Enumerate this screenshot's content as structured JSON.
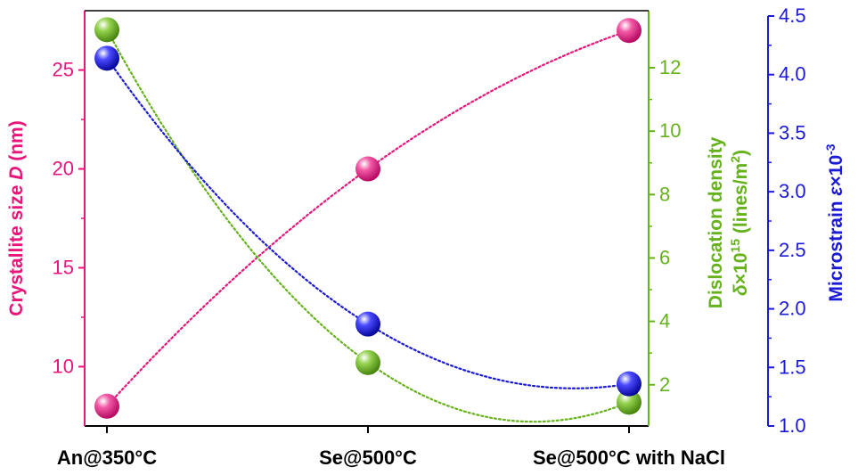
{
  "chart_data": {
    "type": "scatter",
    "categories": [
      "An@350°C",
      "Se@500°C",
      "Se@500°C with NaCl"
    ],
    "series": [
      {
        "id": "crystallite",
        "axis": "left",
        "color": "#E8157A",
        "values": [
          8.0,
          20.0,
          27.0
        ]
      },
      {
        "id": "dislocation",
        "axis": "right1",
        "color": "#66B21C",
        "values": [
          13.2,
          2.7,
          1.45
        ]
      },
      {
        "id": "microstrain",
        "axis": "right2",
        "color": "#1B1BD6",
        "values": [
          4.14,
          1.87,
          1.36
        ]
      }
    ],
    "axes": {
      "left": {
        "ylim": [
          7,
          28
        ],
        "ticks": [
          "10",
          "15",
          "20",
          "25"
        ],
        "tick_values": [
          10,
          15,
          20,
          25
        ],
        "label": {
          "pre": "Crystallite size ",
          "italic": "D",
          "post": " (nm)"
        },
        "color": "#E8157A"
      },
      "right1": {
        "ylim": [
          0.7,
          13.8
        ],
        "ticks": [
          "2",
          "4",
          "6",
          "8",
          "10",
          "12"
        ],
        "tick_values": [
          2,
          4,
          6,
          8,
          10,
          12
        ],
        "label_line1": "Dislocation density",
        "label_line2": {
          "delta": "δ",
          "times": "×10",
          "exp": "15",
          "mid": " (lines/m",
          "sup": "2",
          "end": ")"
        },
        "color": "#66B21C"
      },
      "right2": {
        "ylim": [
          1.0,
          4.5
        ],
        "ticks": [
          "1.0",
          "1.5",
          "2.0",
          "2.5",
          "3.0",
          "3.5",
          "4.0",
          "4.5"
        ],
        "tick_values": [
          1.0,
          1.5,
          2.0,
          2.5,
          3.0,
          3.5,
          4.0,
          4.5
        ],
        "label": {
          "pre": "Microstrain ",
          "italic": "ε",
          "times": "×10",
          "exp": "-3"
        },
        "color": "#1B1BD6"
      }
    },
    "grid": false,
    "trend_lines": "dotted"
  }
}
